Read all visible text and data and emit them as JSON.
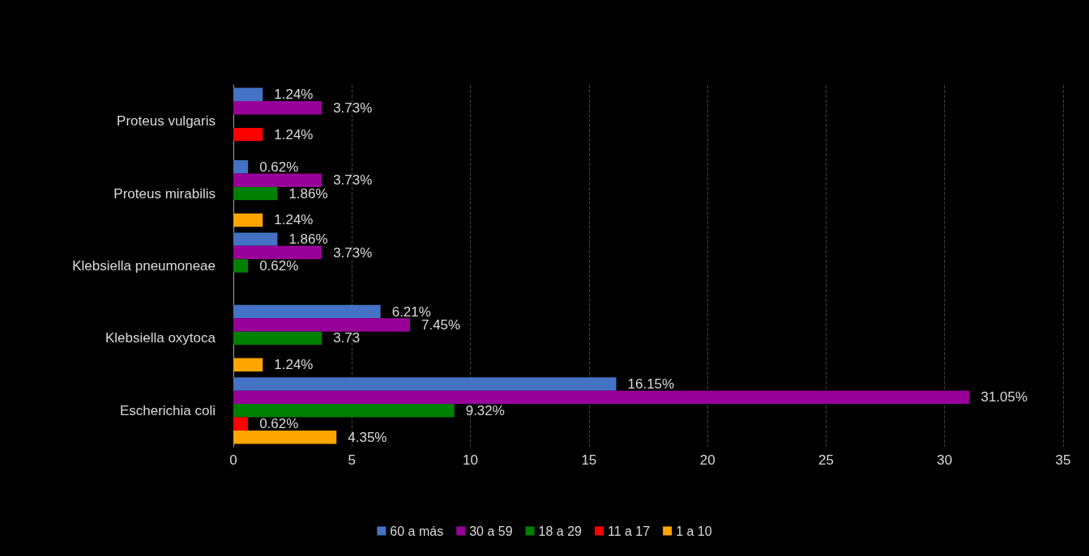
{
  "chart_data": {
    "type": "bar",
    "orientation": "horizontal",
    "categories": [
      "Proteus vulgaris",
      "Proteus mirabilis",
      "Klebsiella pneumoneae",
      "Klebsiella oxytoca",
      "Escherichia coli"
    ],
    "series": [
      {
        "name": "60 a más",
        "color": "#4472c4",
        "values": [
          1.24,
          0.62,
          1.86,
          6.21,
          16.15
        ],
        "value_labels": [
          "1.24%",
          "0.62%",
          "1.86%",
          "6.21%",
          "16.15%"
        ]
      },
      {
        "name": "30 a 59",
        "color": "#990099",
        "values": [
          3.73,
          3.73,
          3.73,
          7.45,
          31.05
        ],
        "value_labels": [
          "3.73%",
          "3.73%",
          "3.73%",
          "7.45%",
          "31.05%"
        ]
      },
      {
        "name": "18 a 29",
        "color": "#008000",
        "values": [
          null,
          1.86,
          0.62,
          3.73,
          9.32
        ],
        "value_labels": [
          null,
          "1.86%",
          "0.62%",
          "3.73",
          "9.32%"
        ]
      },
      {
        "name": "11 a 17",
        "color": "#ff0000",
        "values": [
          1.24,
          null,
          null,
          null,
          0.62
        ],
        "value_labels": [
          "1.24%",
          null,
          null,
          null,
          "0.62%"
        ]
      },
      {
        "name": "1 a 10",
        "color": "#ffa500",
        "values": [
          null,
          1.24,
          null,
          1.24,
          4.35
        ],
        "value_labels": [
          null,
          "1.24%",
          null,
          "1.24%",
          "4.35%"
        ]
      }
    ],
    "xlim": [
      0,
      35
    ],
    "xticks": [
      0,
      5,
      10,
      15,
      20,
      25,
      30,
      35
    ],
    "grid": "x",
    "legend": "bottom"
  }
}
